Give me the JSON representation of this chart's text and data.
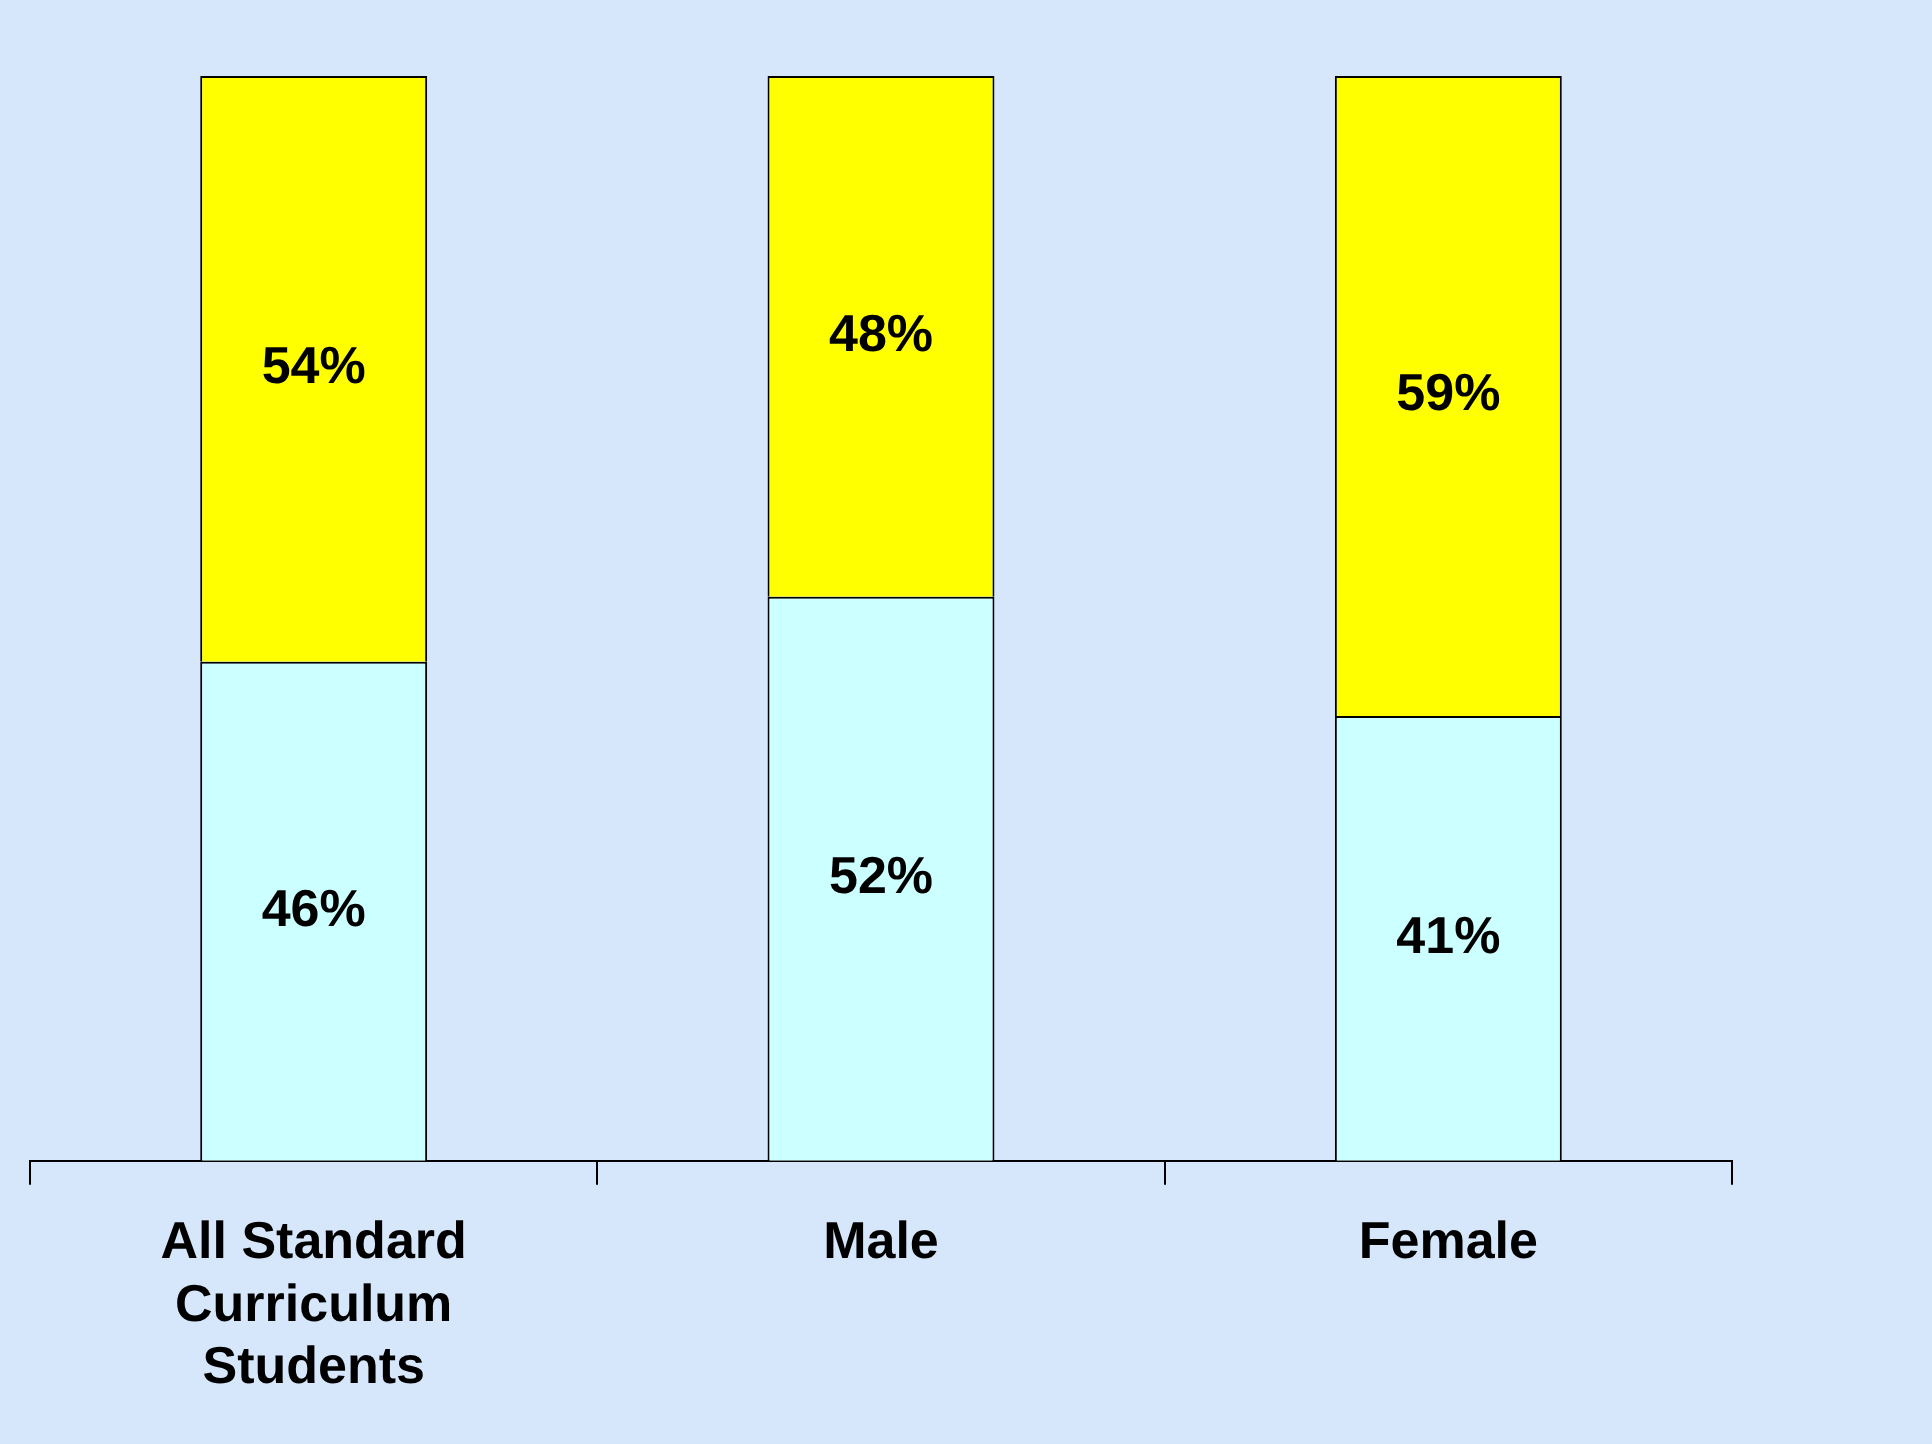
{
  "chart_data": {
    "type": "bar",
    "stacked": true,
    "categories": [
      "All Standard Curriculum Students",
      "Male",
      "Female"
    ],
    "series": [
      {
        "color": "#ccffff",
        "values": [
          46,
          52,
          41
        ],
        "value_labels": [
          "46%",
          "52%",
          "41%"
        ]
      },
      {
        "color": "#ffff00",
        "values": [
          54,
          48,
          59
        ],
        "value_labels": [
          "54%",
          "48%",
          "59%"
        ]
      }
    ]
  }
}
